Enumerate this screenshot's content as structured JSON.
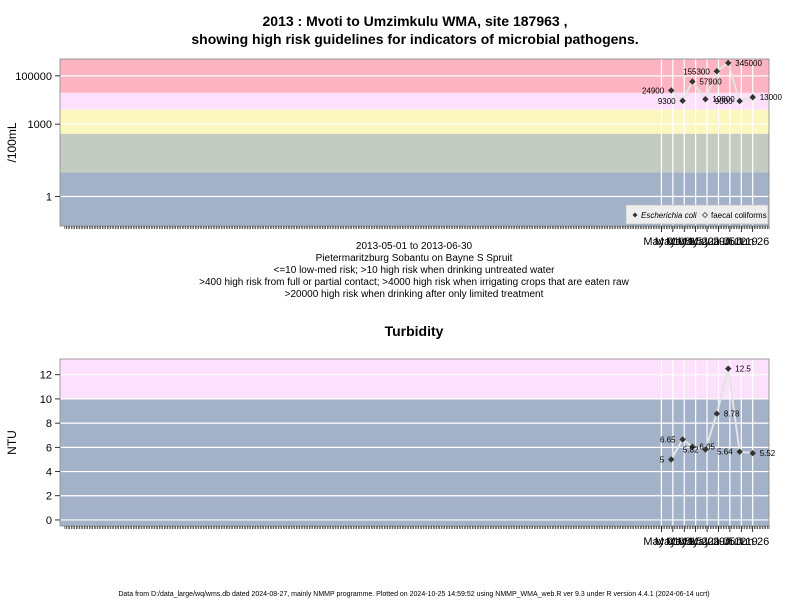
{
  "chart_data": [
    {
      "type": "line",
      "title_line1": "2013 : Mvoti to Umzimkulu WMA, site 187963 ,",
      "title_line2": "showing high risk guidelines for indicators of microbial pathogens.",
      "ylabel": "/100mL",
      "y_scale": "log10",
      "ylim": [
        0.06,
        500000
      ],
      "y_ticks": [
        1,
        1000,
        100000
      ],
      "y_tick_labels": [
        "1",
        "1000",
        "100000"
      ],
      "x_ticks": [
        "May 01",
        "May 08",
        "May 15",
        "May 22",
        "May 29",
        "Jun 05",
        "Jun 12",
        "Jun 19",
        "Jun 26"
      ],
      "x_tick_dates": [
        "2013-05-01",
        "2013-05-08",
        "2013-05-15",
        "2013-05-22",
        "2013-05-29",
        "2013-06-05",
        "2013-06-12",
        "2013-06-19",
        "2013-06-26"
      ],
      "xlim": [
        "2012-04-27",
        "2013-07-06"
      ],
      "grid": true,
      "bands": [
        {
          "from": 0.06,
          "to": 10,
          "color": "#a3b2c9"
        },
        {
          "from": 10,
          "to": 400,
          "color": "#c4ccc1"
        },
        {
          "from": 400,
          "to": 4000,
          "color": "#fcf6bf"
        },
        {
          "from": 4000,
          "to": 20000,
          "color": "#fce0fc"
        },
        {
          "from": 20000,
          "to": 500000,
          "color": "#fcb4c2"
        }
      ],
      "series": [
        {
          "name": "Escherichia coli",
          "x": [
            "2013-05-07",
            "2013-05-14",
            "2013-05-20",
            "2013-05-28",
            "2013-06-04",
            "2013-06-11",
            "2013-06-18",
            "2013-06-26"
          ],
          "values": [
            24900,
            9300,
            57900,
            10800,
            155300,
            345000,
            9000,
            13000
          ],
          "labels": [
            "24900",
            "9300",
            "57900",
            "10800",
            "155300",
            "345000",
            "9000",
            "13000"
          ],
          "label_side": [
            "left",
            "left",
            "right",
            "right",
            "left",
            "right",
            "left",
            "right"
          ]
        }
      ],
      "legend": {
        "placement": "bottom-right",
        "items": [
          {
            "text": "Escherichia coli",
            "italic": true
          },
          {
            "text": "faecal coliforms",
            "italic": false
          }
        ]
      },
      "subtitle_lines": [
        "2013-05-01 to 2013-06-30",
        "Pietermaritzburg Sobantu on Bayne S Spruit",
        "<=10 low-med risk; >10 high risk when drinking untreated water",
        ">400 high risk from full or partial contact; >4000 high risk when irrigating crops that are eaten raw",
        ">20000 high risk when drinking after only limited treatment"
      ]
    },
    {
      "type": "line",
      "title": "Turbidity",
      "ylabel": "NTU",
      "y_scale": "linear",
      "ylim": [
        -0.5,
        13.3
      ],
      "y_ticks": [
        0,
        2,
        4,
        6,
        8,
        10,
        12
      ],
      "x_ticks": [
        "May 01",
        "May 08",
        "May 15",
        "May 22",
        "May 29",
        "Jun 05",
        "Jun 12",
        "Jun 19",
        "Jun 26"
      ],
      "x_tick_dates": [
        "2013-05-01",
        "2013-05-08",
        "2013-05-15",
        "2013-05-22",
        "2013-05-29",
        "2013-06-05",
        "2013-06-12",
        "2013-06-19",
        "2013-06-26"
      ],
      "xlim": [
        "2012-04-27",
        "2013-07-06"
      ],
      "grid": true,
      "bands": [
        {
          "from": -0.5,
          "to": 10,
          "color": "#a3b2c9"
        },
        {
          "from": 10,
          "to": 13.3,
          "color": "#fce0fc"
        }
      ],
      "series": [
        {
          "x": [
            "2013-05-07",
            "2013-05-14",
            "2013-05-20",
            "2013-05-28",
            "2013-06-04",
            "2013-06-11",
            "2013-06-18",
            "2013-06-26"
          ],
          "values": [
            5,
            6.65,
            6.05,
            5.82,
            8.78,
            12.5,
            5.64,
            5.52
          ],
          "labels": [
            "5",
            "6.65",
            "6.05",
            "5.82",
            "8.78",
            "12.5",
            "5.64",
            "5.52"
          ],
          "label_side": [
            "left",
            "left",
            "right",
            "left",
            "right",
            "right",
            "left",
            "right"
          ]
        }
      ]
    }
  ],
  "footer": "Data from D:/data_large/wq/wms.db dated 2024-08-27, mainly NMMP programme. Plotted on 2024-10-25 14:59:52 using NMMP_WMA_web.R ver 9.3 under R version 4.4.1 (2024-06-14 ucrt)"
}
